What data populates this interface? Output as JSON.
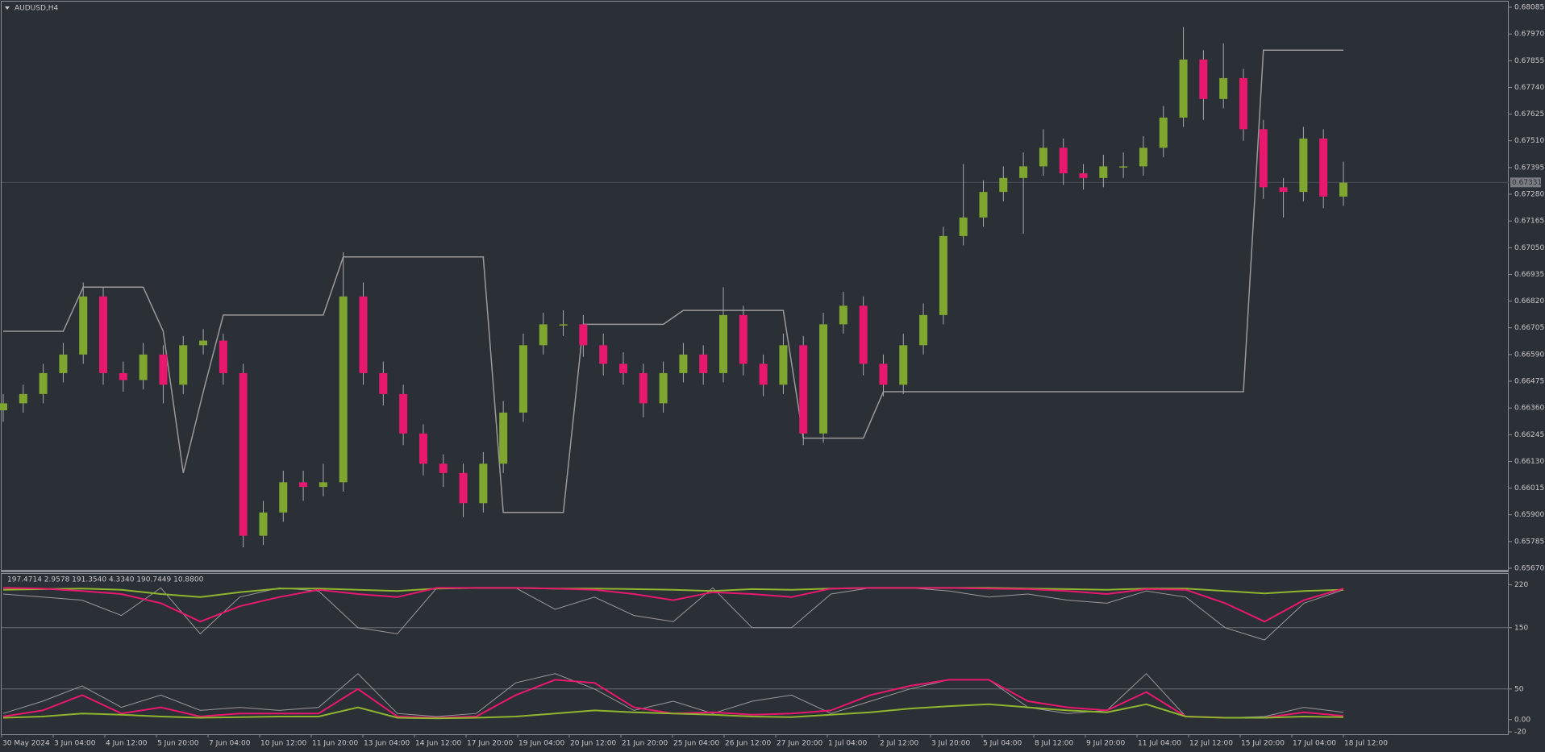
{
  "chart_data": {
    "type": "candlestick",
    "title": "AUDUSD,H4",
    "ylim": [
      0.6567,
      0.68085
    ],
    "yticks": [
      {
        "value": 0.68085,
        "label": "0.68085"
      },
      {
        "value": 0.6797,
        "label": "0.67970"
      },
      {
        "value": 0.67855,
        "label": "0.67855"
      },
      {
        "value": 0.6774,
        "label": "0.67740"
      },
      {
        "value": 0.67625,
        "label": "0.67625"
      },
      {
        "value": 0.6751,
        "label": "0.67510"
      },
      {
        "value": 0.67395,
        "label": "0.67395"
      },
      {
        "value": 0.6728,
        "label": "0.67280"
      },
      {
        "value": 0.67165,
        "label": "0.67165"
      },
      {
        "value": 0.6705,
        "label": "0.67050"
      },
      {
        "value": 0.66935,
        "label": "0.66935"
      },
      {
        "value": 0.6682,
        "label": "0.66820"
      },
      {
        "value": 0.66705,
        "label": "0.66705"
      },
      {
        "value": 0.6659,
        "label": "0.66590"
      },
      {
        "value": 0.66475,
        "label": "0.66475"
      },
      {
        "value": 0.6636,
        "label": "0.66360"
      },
      {
        "value": 0.66245,
        "label": "0.66245"
      },
      {
        "value": 0.6613,
        "label": "0.66130"
      },
      {
        "value": 0.66015,
        "label": "0.66015"
      },
      {
        "value": 0.659,
        "label": "0.65900"
      },
      {
        "value": 0.65785,
        "label": "0.65785"
      },
      {
        "value": 0.6567,
        "label": "0.65670"
      }
    ],
    "current_price": 0.67331,
    "categories": [
      "30 May 2024",
      "3 Jun 04:00",
      "4 Jun 12:00",
      "5 Jun 20:00",
      "7 Jun 04:00",
      "10 Jun 12:00",
      "11 Jun 20:00",
      "13 Jun 04:00",
      "14 Jun 12:00",
      "17 Jun 20:00",
      "19 Jun 04:00",
      "20 Jun 12:00",
      "21 Jun 20:00",
      "25 Jun 04:00",
      "26 Jun 12:00",
      "27 Jun 20:00",
      "1 Jul 04:00",
      "2 Jul 12:00",
      "3 Jul 20:00",
      "5 Jul 04:00",
      "8 Jul 12:00",
      "9 Jul 20:00",
      "11 Jul 04:00",
      "12 Jul 12:00",
      "15 Jul 20:00",
      "17 Jul 04:00",
      "18 Jul 12:00"
    ],
    "up_color": "#7fa62e",
    "down_color": "#e8186f",
    "candles": [
      [
        0.6635,
        0.6642,
        0.663,
        0.6638
      ],
      [
        0.6638,
        0.6646,
        0.6634,
        0.6642
      ],
      [
        0.6642,
        0.6655,
        0.6638,
        0.6651
      ],
      [
        0.6651,
        0.6664,
        0.6647,
        0.6659
      ],
      [
        0.6659,
        0.669,
        0.6655,
        0.6684
      ],
      [
        0.6684,
        0.6688,
        0.6646,
        0.6651
      ],
      [
        0.6651,
        0.6656,
        0.6643,
        0.6648
      ],
      [
        0.6648,
        0.6664,
        0.6644,
        0.6659
      ],
      [
        0.6659,
        0.6663,
        0.6638,
        0.6646
      ],
      [
        0.6646,
        0.6667,
        0.6642,
        0.6663
      ],
      [
        0.6663,
        0.667,
        0.6659,
        0.6665
      ],
      [
        0.6665,
        0.6668,
        0.6646,
        0.6651
      ],
      [
        0.6651,
        0.6655,
        0.6576,
        0.6581
      ],
      [
        0.6581,
        0.6596,
        0.6577,
        0.6591
      ],
      [
        0.6591,
        0.6609,
        0.6587,
        0.6604
      ],
      [
        0.6604,
        0.6609,
        0.6596,
        0.6602
      ],
      [
        0.6602,
        0.6612,
        0.6598,
        0.6604
      ],
      [
        0.6604,
        0.6703,
        0.66,
        0.6684
      ],
      [
        0.6684,
        0.669,
        0.6646,
        0.6651
      ],
      [
        0.6651,
        0.6656,
        0.6637,
        0.6642
      ],
      [
        0.6642,
        0.6646,
        0.662,
        0.6625
      ],
      [
        0.6625,
        0.6629,
        0.6607,
        0.6612
      ],
      [
        0.6612,
        0.6616,
        0.6602,
        0.6608
      ],
      [
        0.6608,
        0.6612,
        0.6589,
        0.6595
      ],
      [
        0.6595,
        0.6617,
        0.6591,
        0.6612
      ],
      [
        0.6612,
        0.6639,
        0.6608,
        0.6634
      ],
      [
        0.6634,
        0.6668,
        0.663,
        0.6663
      ],
      [
        0.6663,
        0.6677,
        0.6659,
        0.6672
      ],
      [
        0.6672,
        0.6678,
        0.6667,
        0.6672
      ],
      [
        0.6672,
        0.6676,
        0.6658,
        0.6663
      ],
      [
        0.6663,
        0.6668,
        0.665,
        0.6655
      ],
      [
        0.6655,
        0.666,
        0.6646,
        0.6651
      ],
      [
        0.6651,
        0.6655,
        0.6632,
        0.6638
      ],
      [
        0.6638,
        0.6656,
        0.6634,
        0.6651
      ],
      [
        0.6651,
        0.6664,
        0.6647,
        0.6659
      ],
      [
        0.6659,
        0.6663,
        0.6646,
        0.6651
      ],
      [
        0.6651,
        0.6688,
        0.6647,
        0.6676
      ],
      [
        0.6676,
        0.668,
        0.665,
        0.6655
      ],
      [
        0.6655,
        0.6659,
        0.6641,
        0.6646
      ],
      [
        0.6646,
        0.6668,
        0.6642,
        0.6663
      ],
      [
        0.6663,
        0.6667,
        0.662,
        0.6625
      ],
      [
        0.6625,
        0.6677,
        0.6621,
        0.6672
      ],
      [
        0.6672,
        0.6686,
        0.6668,
        0.668
      ],
      [
        0.668,
        0.6684,
        0.665,
        0.6655
      ],
      [
        0.6655,
        0.6659,
        0.6641,
        0.6646
      ],
      [
        0.6646,
        0.6668,
        0.6642,
        0.6663
      ],
      [
        0.6663,
        0.6681,
        0.6659,
        0.6676
      ],
      [
        0.6676,
        0.6714,
        0.6672,
        0.671
      ],
      [
        0.671,
        0.6741,
        0.6706,
        0.6718
      ],
      [
        0.6718,
        0.6734,
        0.6714,
        0.6729
      ],
      [
        0.6729,
        0.674,
        0.6725,
        0.6735
      ],
      [
        0.6735,
        0.6746,
        0.6711,
        0.674
      ],
      [
        0.674,
        0.6756,
        0.6736,
        0.6748
      ],
      [
        0.6748,
        0.6752,
        0.6732,
        0.6737
      ],
      [
        0.6737,
        0.6741,
        0.673,
        0.6735
      ],
      [
        0.6735,
        0.6745,
        0.6731,
        0.674
      ],
      [
        0.674,
        0.6746,
        0.6735,
        0.674
      ],
      [
        0.674,
        0.6753,
        0.6736,
        0.6748
      ],
      [
        0.6748,
        0.6766,
        0.6744,
        0.6761
      ],
      [
        0.6761,
        0.68,
        0.6757,
        0.6786
      ],
      [
        0.6786,
        0.679,
        0.676,
        0.6769
      ],
      [
        0.6769,
        0.6793,
        0.6765,
        0.6778
      ],
      [
        0.6778,
        0.6782,
        0.6751,
        0.6756
      ],
      [
        0.6756,
        0.676,
        0.6726,
        0.6731
      ],
      [
        0.6731,
        0.6735,
        0.6718,
        0.6729
      ],
      [
        0.6729,
        0.6757,
        0.6725,
        0.6752
      ],
      [
        0.6752,
        0.6756,
        0.6722,
        0.6727
      ],
      [
        0.6727,
        0.6742,
        0.6723,
        0.6733
      ]
    ],
    "channel": {
      "color": "#9a9a9a",
      "values": [
        0.6669,
        0.6669,
        0.6669,
        0.6669,
        0.6688,
        0.6688,
        0.6688,
        0.6688,
        0.6669,
        0.6608,
        0.6643,
        0.6676,
        0.6676,
        0.6676,
        0.6676,
        0.6676,
        0.6676,
        0.6701,
        0.6701,
        0.6701,
        0.6701,
        0.6701,
        0.6701,
        0.6701,
        0.6701,
        0.6591,
        0.6591,
        0.6591,
        0.6591,
        0.6672,
        0.6672,
        0.6672,
        0.6672,
        0.6672,
        0.6678,
        0.6678,
        0.6678,
        0.6678,
        0.6678,
        0.6678,
        0.6623,
        0.6623,
        0.6623,
        0.6623,
        0.6643,
        0.6643,
        0.6643,
        0.6643,
        0.6643,
        0.6643,
        0.6643,
        0.6643,
        0.6643,
        0.6643,
        0.6643,
        0.6643,
        0.6643,
        0.6643,
        0.6643,
        0.6643,
        0.6643,
        0.6643,
        0.6643,
        0.679,
        0.679,
        0.679,
        0.679,
        0.679
      ]
    },
    "indicator": {
      "label": "197.4714 2.9578 191.3540 4.3340 190.7449 10.8800",
      "ylim": [
        -20,
        230
      ],
      "yticks": [
        220,
        150,
        50,
        {
          "value": 0,
          "label": "0.00"
        },
        -20
      ],
      "series": [
        {
          "color": "#9a9a9a",
          "values": [
            205,
            200,
            195,
            170,
            215,
            140,
            200,
            215,
            210,
            150,
            140,
            215,
            215,
            215,
            180,
            200,
            170,
            160,
            215,
            150,
            150,
            205,
            215,
            215,
            210,
            200,
            205,
            195,
            190,
            210,
            200,
            150,
            130,
            190,
            212
          ]
        },
        {
          "color": "#8fb52f",
          "values": [
            212,
            213,
            214,
            212,
            205,
            200,
            208,
            214,
            214,
            212,
            210,
            214,
            215,
            215,
            214,
            214,
            213,
            212,
            210,
            213,
            212,
            214,
            215,
            215,
            215,
            215,
            214,
            213,
            212,
            214,
            214,
            210,
            206,
            210,
            212
          ]
        },
        {
          "color": "#e8186f",
          "values": [
            215,
            214,
            210,
            205,
            190,
            160,
            185,
            200,
            212,
            205,
            200,
            215,
            215,
            215,
            214,
            212,
            205,
            195,
            208,
            205,
            200,
            214,
            215,
            215,
            215,
            214,
            213,
            210,
            205,
            213,
            212,
            190,
            160,
            195,
            214
          ]
        },
        {
          "color": "#9a9a9a",
          "values": [
            10,
            30,
            55,
            20,
            40,
            15,
            20,
            15,
            20,
            75,
            10,
            5,
            10,
            60,
            75,
            50,
            15,
            30,
            10,
            30,
            40,
            10,
            30,
            50,
            65,
            65,
            20,
            10,
            15,
            75,
            5,
            3,
            5,
            20,
            12
          ]
        },
        {
          "color": "#e8186f",
          "values": [
            5,
            15,
            40,
            10,
            20,
            5,
            10,
            10,
            10,
            50,
            5,
            3,
            5,
            40,
            65,
            60,
            20,
            10,
            12,
            8,
            10,
            15,
            40,
            55,
            65,
            65,
            30,
            20,
            15,
            45,
            5,
            3,
            3,
            12,
            6
          ]
        },
        {
          "color": "#8fb52f",
          "values": [
            3,
            5,
            10,
            8,
            5,
            3,
            4,
            5,
            5,
            20,
            3,
            2,
            3,
            5,
            10,
            15,
            12,
            10,
            8,
            5,
            4,
            8,
            12,
            18,
            22,
            25,
            20,
            15,
            12,
            25,
            5,
            3,
            3,
            5,
            4
          ]
        }
      ]
    }
  }
}
